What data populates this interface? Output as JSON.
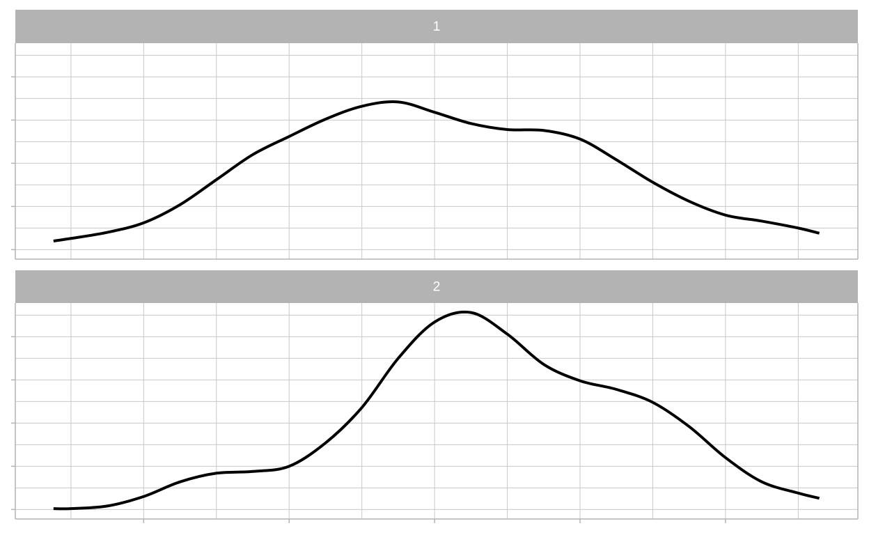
{
  "chart_data": [
    {
      "type": "line",
      "title": "1",
      "x": [
        0.76,
        1,
        1.5,
        2,
        2.5,
        3,
        3.5,
        4,
        4.5,
        5,
        5.5,
        6,
        6.5,
        7,
        7.5,
        8,
        8.5,
        9,
        9.5,
        10,
        10.5,
        11,
        11.29
      ],
      "values": [
        0.01,
        0.013,
        0.02,
        0.031,
        0.052,
        0.081,
        0.11,
        0.131,
        0.151,
        0.166,
        0.171,
        0.159,
        0.146,
        0.139,
        0.138,
        0.128,
        0.104,
        0.078,
        0.056,
        0.04,
        0.033,
        0.025,
        0.019
      ],
      "color": "#000000",
      "xlim": [
        0.235,
        11.82
      ],
      "xticks": [
        2,
        4,
        6,
        8,
        10
      ],
      "xminor": [
        1,
        3,
        5,
        7,
        9,
        11
      ],
      "ylim": [
        -0.011,
        0.239
      ],
      "yticks": [
        0,
        0.05,
        0.1,
        0.15,
        0.2
      ],
      "yminor": [
        0.025,
        0.075,
        0.125,
        0.175,
        0.225
      ],
      "grid": true,
      "x_tick_marks": false
    },
    {
      "type": "line",
      "title": "2",
      "x": [
        0.76,
        1,
        1.5,
        2,
        2.5,
        3,
        3.5,
        4,
        4.5,
        5,
        5.5,
        6,
        6.5,
        7,
        7.5,
        8,
        8.5,
        9,
        9.5,
        10,
        10.5,
        11,
        11.29
      ],
      "values": [
        0.001,
        0.001,
        0.004,
        0.015,
        0.032,
        0.042,
        0.044,
        0.05,
        0.077,
        0.118,
        0.175,
        0.217,
        0.228,
        0.203,
        0.168,
        0.149,
        0.139,
        0.124,
        0.096,
        0.06,
        0.032,
        0.019,
        0.013
      ],
      "color": "#000000",
      "xlim": [
        0.235,
        11.82
      ],
      "xticks": [
        2,
        4,
        6,
        8,
        10
      ],
      "xminor": [
        1,
        3,
        5,
        7,
        9,
        11
      ],
      "ylim": [
        -0.011,
        0.239
      ],
      "yticks": [
        0,
        0.05,
        0.1,
        0.15,
        0.2
      ],
      "yminor": [
        0.025,
        0.075,
        0.125,
        0.175,
        0.225
      ],
      "grid": true,
      "x_tick_marks": true
    }
  ]
}
